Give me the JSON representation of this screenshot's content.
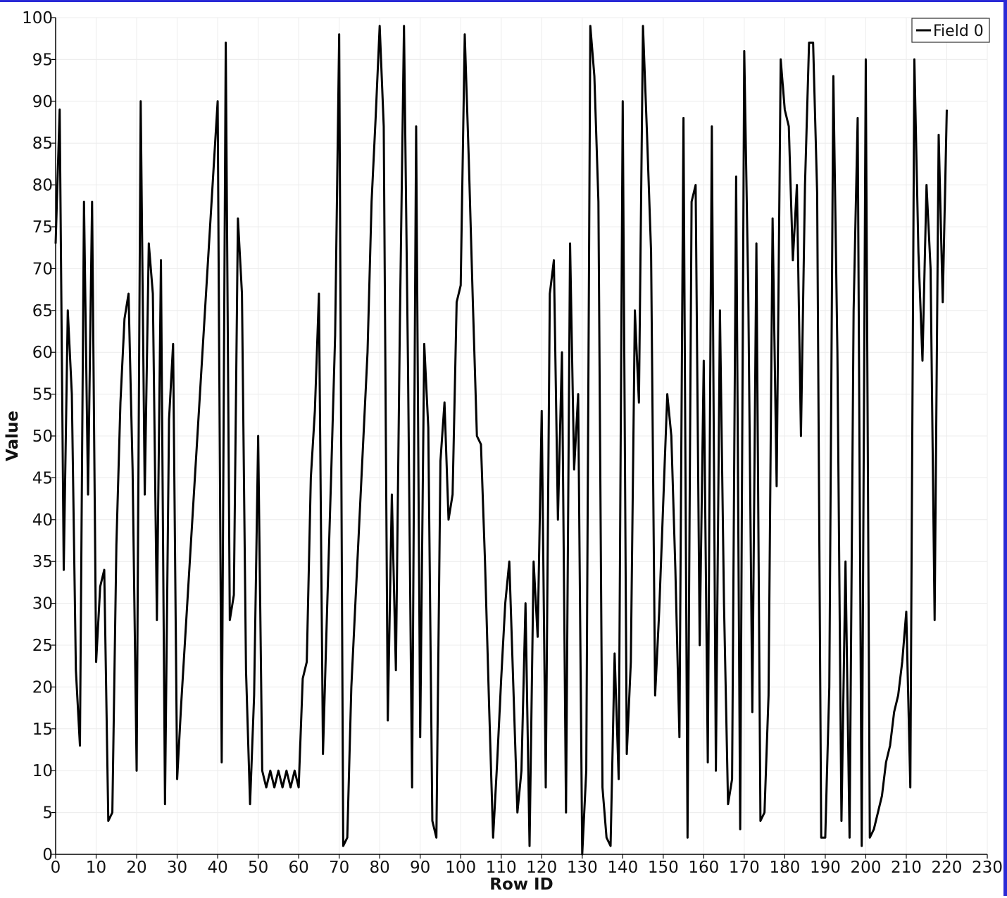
{
  "chart_data": {
    "type": "line",
    "xlabel": "Row ID",
    "ylabel": "Value",
    "xlim": [
      0,
      230
    ],
    "ylim": [
      0,
      100
    ],
    "x_ticks": [
      0,
      10,
      20,
      30,
      40,
      50,
      60,
      70,
      80,
      90,
      100,
      110,
      120,
      130,
      140,
      150,
      160,
      170,
      180,
      190,
      200,
      210,
      220,
      230
    ],
    "y_ticks": [
      0,
      5,
      10,
      15,
      20,
      25,
      30,
      35,
      40,
      45,
      50,
      55,
      60,
      65,
      70,
      75,
      80,
      85,
      90,
      95,
      100
    ],
    "grid": true,
    "legend_position": "top-right",
    "series": [
      {
        "name": "Field 0",
        "color": "#000000",
        "values": [
          73,
          89,
          34,
          65,
          55,
          22,
          13,
          78,
          43,
          78,
          23,
          32,
          34,
          4,
          5,
          37,
          54,
          64,
          67,
          46,
          10,
          90,
          43,
          73,
          67,
          28,
          71,
          6,
          52,
          61,
          9,
          18,
          26,
          34,
          42,
          50,
          58,
          66,
          74,
          82,
          90,
          11,
          97,
          28,
          31,
          76,
          67,
          22,
          6,
          19,
          50,
          10,
          8,
          10,
          8,
          10,
          8,
          10,
          8,
          10,
          8,
          21,
          23,
          45,
          53,
          67,
          12,
          29,
          45,
          62,
          98,
          1,
          2,
          20,
          30,
          40,
          50,
          60,
          78,
          88,
          99,
          87,
          16,
          43,
          22,
          64,
          99,
          58,
          8,
          87,
          14,
          61,
          51,
          4,
          2,
          47,
          54,
          40,
          43,
          66,
          68,
          98,
          83,
          66,
          50,
          49,
          35,
          18,
          2,
          11,
          21,
          30,
          35,
          20,
          5,
          10,
          30,
          1,
          35,
          26,
          53,
          8,
          67,
          71,
          40,
          60,
          5,
          73,
          46,
          55,
          0,
          10,
          99,
          93,
          78,
          8,
          2,
          1,
          24,
          9,
          90,
          12,
          23,
          65,
          54,
          99,
          86,
          72,
          19,
          29,
          42,
          55,
          50,
          34,
          14,
          88,
          2,
          78,
          80,
          25,
          59,
          11,
          87,
          10,
          65,
          30,
          6,
          9,
          81,
          3,
          96,
          67,
          17,
          73,
          4,
          5,
          19,
          76,
          44,
          95,
          89,
          87,
          71,
          80,
          50,
          80,
          97,
          97,
          79,
          2,
          2,
          20,
          93,
          60,
          4,
          35,
          2,
          65,
          88,
          1,
          95,
          2,
          3,
          5,
          7,
          11,
          13,
          17,
          19,
          23,
          29,
          8,
          95,
          72,
          59,
          80,
          70,
          28,
          86,
          66,
          89
        ]
      }
    ]
  }
}
